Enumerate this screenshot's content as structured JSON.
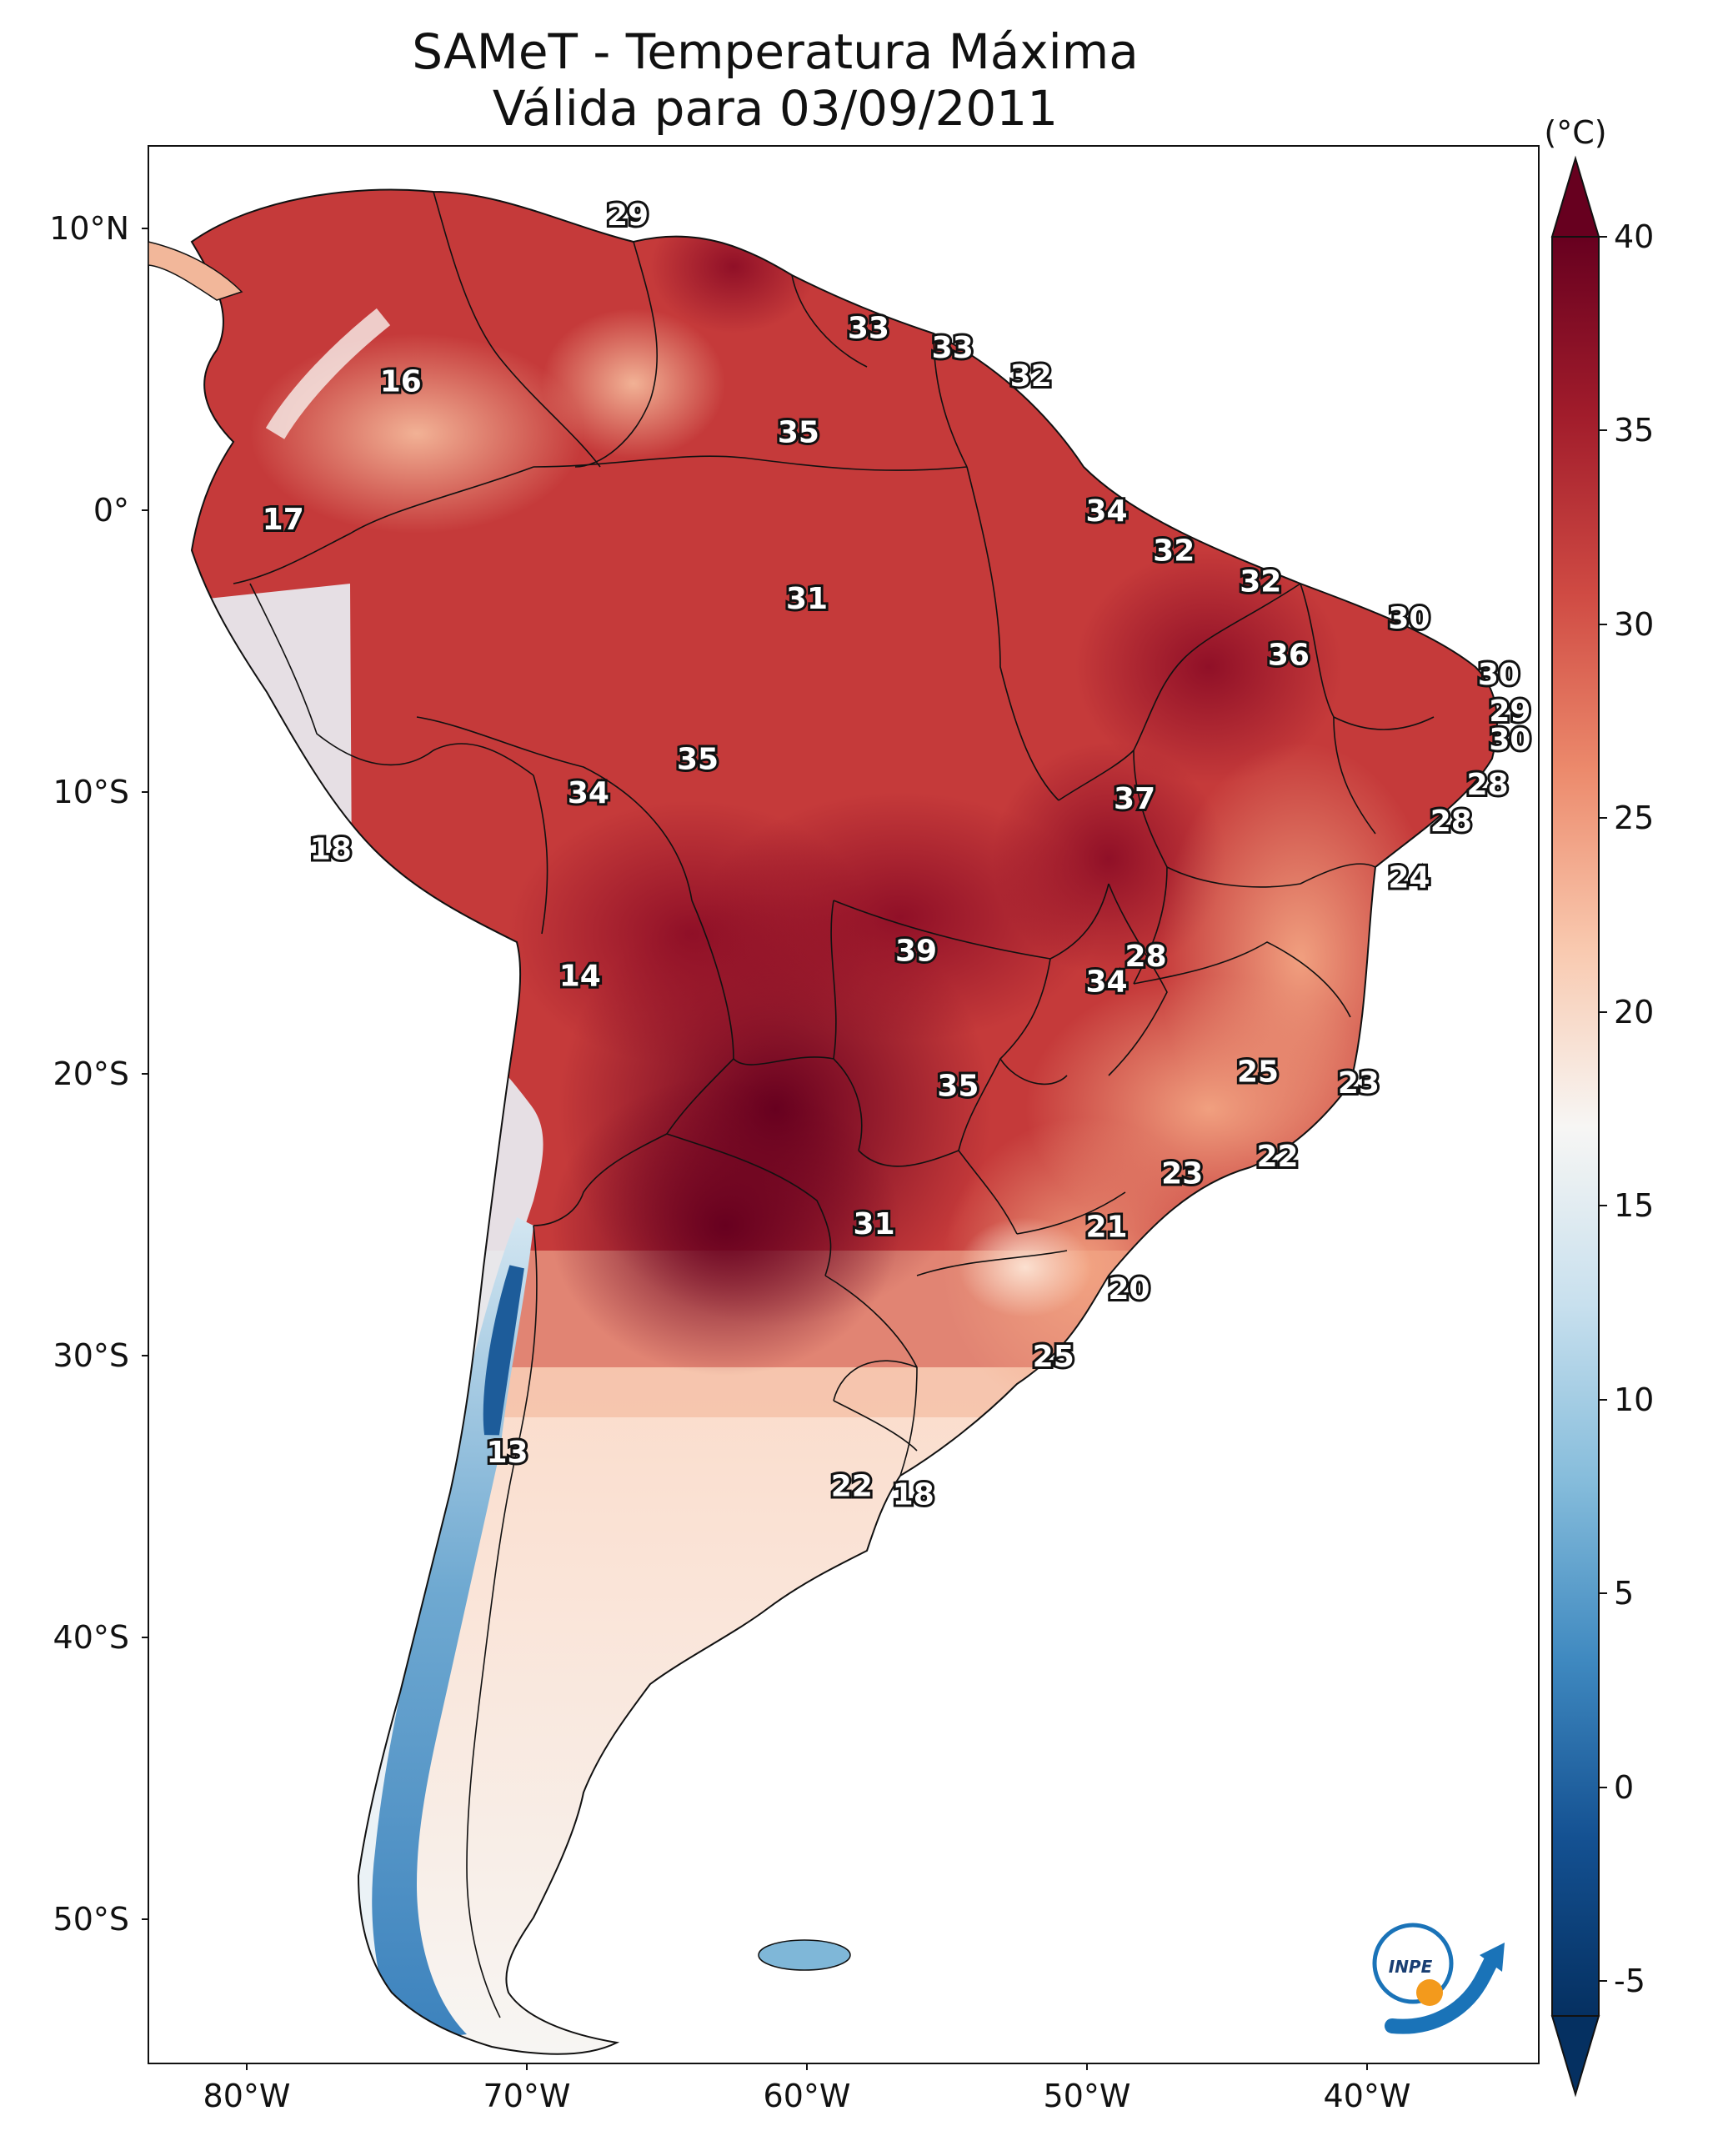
{
  "title": {
    "line1": "SAMeT - Temperatura Máxima",
    "line2": "Válida para 03/09/2011"
  },
  "colorbar": {
    "unit": "(°C)",
    "ticks": [
      "40",
      "35",
      "30",
      "25",
      "20",
      "15",
      "10",
      "5",
      "0",
      "-5"
    ],
    "colors": [
      "#67001f",
      "#a11c2b",
      "#cf4a43",
      "#ec8a6c",
      "#f9c9af",
      "#f7f6f4",
      "#c8e0ee",
      "#85bcdb",
      "#3f89c0",
      "#145192",
      "#053061"
    ]
  },
  "axes": {
    "lat_labels": [
      "10°N",
      "0°",
      "10°S",
      "20°S",
      "30°S",
      "40°S",
      "50°S"
    ],
    "lon_labels": [
      "80°W",
      "70°W",
      "60°W",
      "50°W",
      "40°W"
    ]
  },
  "logo": {
    "text": "INPE"
  },
  "stations": [
    {
      "name": "station-29-caribbean",
      "value": "29",
      "lon": -66.4,
      "lat": 10.5
    },
    {
      "name": "station-33-a",
      "value": "33",
      "lon": -57.8,
      "lat": 6.5
    },
    {
      "name": "station-33-b",
      "value": "33",
      "lon": -54.8,
      "lat": 5.8
    },
    {
      "name": "station-32-a",
      "value": "32",
      "lon": -52.0,
      "lat": 4.8
    },
    {
      "name": "station-16",
      "value": "16",
      "lon": -74.5,
      "lat": 4.6
    },
    {
      "name": "station-35-a",
      "value": "35",
      "lon": -60.3,
      "lat": 2.8
    },
    {
      "name": "station-34-a",
      "value": "34",
      "lon": -49.3,
      "lat": 0.0
    },
    {
      "name": "station-17",
      "value": "17",
      "lon": -78.7,
      "lat": -0.3
    },
    {
      "name": "station-32-b",
      "value": "32",
      "lon": -46.9,
      "lat": -1.4
    },
    {
      "name": "station-32-c",
      "value": "32",
      "lon": -43.8,
      "lat": -2.5
    },
    {
      "name": "station-31-a",
      "value": "31",
      "lon": -60.0,
      "lat": -3.1
    },
    {
      "name": "station-30-a",
      "value": "30",
      "lon": -38.5,
      "lat": -3.8
    },
    {
      "name": "station-36",
      "value": "36",
      "lon": -42.8,
      "lat": -5.1
    },
    {
      "name": "station-30-b",
      "value": "30",
      "lon": -35.3,
      "lat": -5.8
    },
    {
      "name": "station-29-b",
      "value": "29",
      "lon": -34.9,
      "lat": -7.1
    },
    {
      "name": "station-30-c",
      "value": "30",
      "lon": -34.9,
      "lat": -8.1
    },
    {
      "name": "station-35-b",
      "value": "35",
      "lon": -63.9,
      "lat": -8.8
    },
    {
      "name": "station-28-a",
      "value": "28",
      "lon": -35.7,
      "lat": -9.7
    },
    {
      "name": "station-34-b",
      "value": "34",
      "lon": -67.8,
      "lat": -10.0
    },
    {
      "name": "station-37",
      "value": "37",
      "lon": -48.3,
      "lat": -10.2
    },
    {
      "name": "station-28-b",
      "value": "28",
      "lon": -37.0,
      "lat": -11.0
    },
    {
      "name": "station-18-a",
      "value": "18",
      "lon": -77.0,
      "lat": -12.0
    },
    {
      "name": "station-24",
      "value": "24",
      "lon": -38.5,
      "lat": -13.0
    },
    {
      "name": "station-39",
      "value": "39",
      "lon": -56.1,
      "lat": -15.6
    },
    {
      "name": "station-28-c",
      "value": "28",
      "lon": -47.9,
      "lat": -15.8
    },
    {
      "name": "station-34-c",
      "value": "34",
      "lon": -49.3,
      "lat": -16.7
    },
    {
      "name": "station-14",
      "value": "14",
      "lon": -68.1,
      "lat": -16.5
    },
    {
      "name": "station-25-a",
      "value": "25",
      "lon": -43.9,
      "lat": -19.9
    },
    {
      "name": "station-23-a",
      "value": "23",
      "lon": -40.3,
      "lat": -20.3
    },
    {
      "name": "station-35-c",
      "value": "35",
      "lon": -54.6,
      "lat": -20.4
    },
    {
      "name": "station-22-a",
      "value": "22",
      "lon": -43.2,
      "lat": -22.9
    },
    {
      "name": "station-23-b",
      "value": "23",
      "lon": -46.6,
      "lat": -23.5
    },
    {
      "name": "station-31-b",
      "value": "31",
      "lon": -57.6,
      "lat": -25.3
    },
    {
      "name": "station-21",
      "value": "21",
      "lon": -49.3,
      "lat": -25.4
    },
    {
      "name": "station-20",
      "value": "20",
      "lon": -48.5,
      "lat": -27.6
    },
    {
      "name": "station-25-b",
      "value": "25",
      "lon": -51.2,
      "lat": -30.0
    },
    {
      "name": "station-13",
      "value": "13",
      "lon": -70.7,
      "lat": -33.4
    },
    {
      "name": "station-22-b",
      "value": "22",
      "lon": -58.4,
      "lat": -34.6
    },
    {
      "name": "station-18-b",
      "value": "18",
      "lon": -56.2,
      "lat": -34.9
    }
  ]
}
